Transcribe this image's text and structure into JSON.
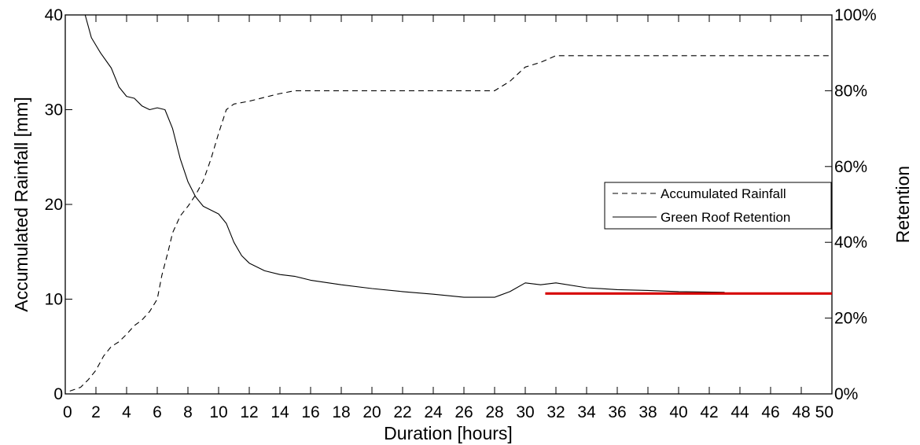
{
  "chart_data": {
    "type": "line",
    "title": "",
    "xlabel": "Duration [hours]",
    "ylabel": "Accumulated Rainfall [mm]",
    "y2label": "Retention",
    "xlim": [
      0,
      50
    ],
    "ylim": [
      0,
      40
    ],
    "y2lim": [
      0,
      100
    ],
    "x_ticks": [
      "0",
      "2",
      "4",
      "6",
      "8",
      "10",
      "12",
      "14",
      "16",
      "18",
      "20",
      "22",
      "24",
      "26",
      "28",
      "30",
      "32",
      "34",
      "36",
      "38",
      "40",
      "42",
      "44",
      "46",
      "48",
      "50"
    ],
    "y_ticks": [
      "0",
      "10",
      "20",
      "30",
      "40"
    ],
    "y2_ticks": [
      "0%",
      "20%",
      "40%",
      "60%",
      "80%",
      "100%"
    ],
    "grid": false,
    "legend_position": "center-right",
    "series": [
      {
        "name": "Accumulated Rainfall",
        "axis": "left",
        "style": "dashed",
        "color": "#000000",
        "points": [
          [
            0.3,
            0.3
          ],
          [
            1,
            0.7
          ],
          [
            1.5,
            1.5
          ],
          [
            2,
            2.5
          ],
          [
            2.5,
            4
          ],
          [
            3,
            5
          ],
          [
            3.5,
            5.5
          ],
          [
            4,
            6.3
          ],
          [
            4.5,
            7.2
          ],
          [
            5,
            7.8
          ],
          [
            5.5,
            8.7
          ],
          [
            6,
            10
          ],
          [
            6.3,
            12.5
          ],
          [
            6.7,
            15
          ],
          [
            7,
            17
          ],
          [
            7.5,
            18.8
          ],
          [
            8,
            19.8
          ],
          [
            8.5,
            21
          ],
          [
            9,
            22.5
          ],
          [
            9.5,
            24.8
          ],
          [
            10,
            27.5
          ],
          [
            10.5,
            30
          ],
          [
            11,
            30.6
          ],
          [
            12,
            30.9
          ],
          [
            13,
            31.3
          ],
          [
            14,
            31.7
          ],
          [
            15,
            32
          ],
          [
            20,
            32
          ],
          [
            25,
            32
          ],
          [
            28,
            32
          ],
          [
            29,
            33
          ],
          [
            30,
            34.5
          ],
          [
            31,
            35
          ],
          [
            32,
            35.7
          ],
          [
            40,
            35.7
          ],
          [
            50,
            35.7
          ]
        ]
      },
      {
        "name": "Green Roof Retention",
        "axis": "right",
        "style": "solid",
        "color": "#000000",
        "points": [
          [
            1.3,
            100
          ],
          [
            1.7,
            94
          ],
          [
            2.3,
            90
          ],
          [
            3,
            86
          ],
          [
            3.5,
            81
          ],
          [
            4,
            78.5
          ],
          [
            4.5,
            78
          ],
          [
            5,
            76
          ],
          [
            5.5,
            75
          ],
          [
            6,
            75.5
          ],
          [
            6.5,
            75
          ],
          [
            7,
            70
          ],
          [
            7.5,
            62
          ],
          [
            8,
            56
          ],
          [
            8.5,
            52
          ],
          [
            9,
            49.5
          ],
          [
            10,
            47.5
          ],
          [
            10.5,
            45
          ],
          [
            11,
            40
          ],
          [
            11.5,
            36.5
          ],
          [
            12,
            34.5
          ],
          [
            13,
            32.5
          ],
          [
            14,
            31.5
          ],
          [
            15,
            31
          ],
          [
            16,
            30
          ],
          [
            18,
            28.8
          ],
          [
            20,
            27.8
          ],
          [
            22,
            27
          ],
          [
            24,
            26.3
          ],
          [
            26,
            25.5
          ],
          [
            28,
            25.5
          ],
          [
            29,
            27
          ],
          [
            30,
            29.3
          ],
          [
            31,
            28.8
          ],
          [
            32,
            29.3
          ],
          [
            34,
            28
          ],
          [
            36,
            27.5
          ],
          [
            38,
            27.3
          ],
          [
            40,
            27
          ],
          [
            43,
            26.8
          ]
        ]
      },
      {
        "name": "",
        "axis": "right",
        "style": "solid",
        "color": "#d60000",
        "points": [
          [
            31.3,
            26.5
          ],
          [
            50,
            26.5
          ]
        ]
      }
    ]
  },
  "legend": [
    {
      "label": "Accumulated Rainfall",
      "style": "dashed"
    },
    {
      "label": "Green Roof Retention",
      "style": "solid"
    }
  ]
}
